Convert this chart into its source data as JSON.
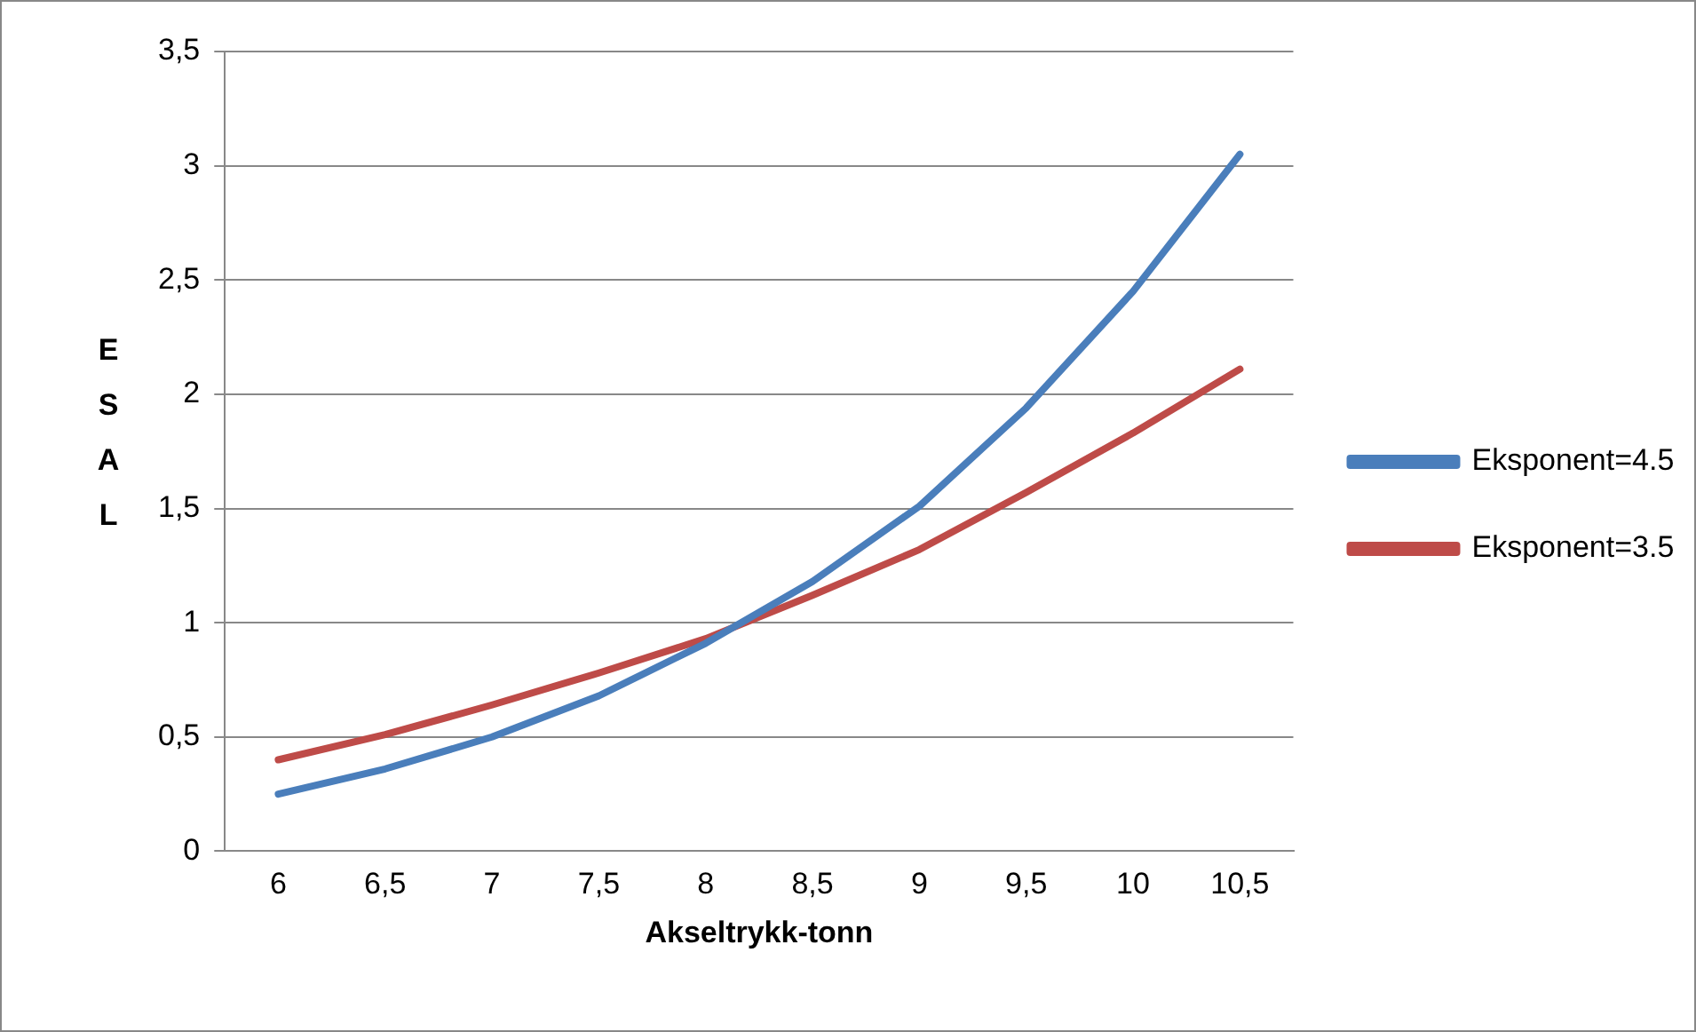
{
  "chart_data": {
    "type": "line",
    "xlabel": "Akseltrykk-tonn",
    "ylabel": "ESAL",
    "categories": [
      "6",
      "6,5",
      "7",
      "7,5",
      "8",
      "8,5",
      "9",
      "9,5",
      "10",
      "10,5"
    ],
    "series": [
      {
        "name": "Eksponent=4.5",
        "color": "#4a7ebb",
        "values": [
          0.25,
          0.36,
          0.5,
          0.68,
          0.91,
          1.18,
          1.51,
          1.94,
          2.45,
          3.05
        ]
      },
      {
        "name": "Eksponent=3.5",
        "color": "#be4b48",
        "values": [
          0.4,
          0.51,
          0.64,
          0.78,
          0.93,
          1.12,
          1.32,
          1.57,
          1.83,
          2.11
        ]
      }
    ],
    "ylim": [
      0,
      3.5
    ],
    "yticks": [
      0,
      {
        "value": 0.5,
        "label": "0,5"
      },
      1,
      {
        "value": 1.5,
        "label": "1,5"
      },
      2,
      {
        "value": 2.5,
        "label": "2,5"
      },
      3,
      {
        "value": 3.5,
        "label": "3,5"
      }
    ],
    "grid": "y",
    "legend": "right",
    "marker": "none",
    "line_style": "solid"
  }
}
